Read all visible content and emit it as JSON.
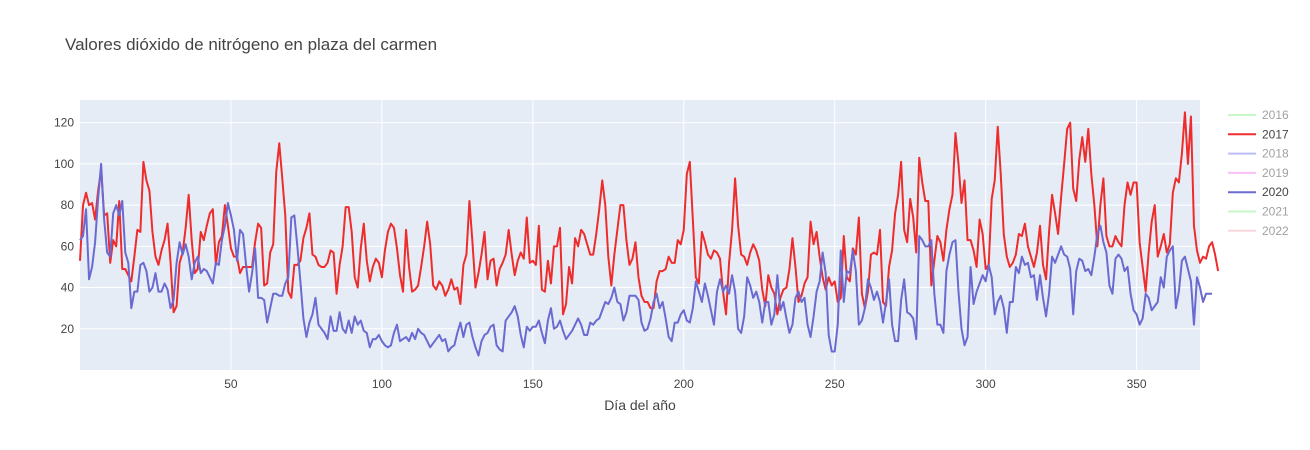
{
  "chart_data": {
    "type": "line",
    "title": "Valores dióxido de nitrógeno en plaza del carmen",
    "xlabel": "Día del año",
    "ylabel": "",
    "xlim": [
      0,
      371
    ],
    "ylim": [
      0,
      131
    ],
    "x_ticks": [
      50,
      100,
      150,
      200,
      250,
      300,
      350
    ],
    "y_ticks": [
      20,
      40,
      60,
      80,
      100,
      120
    ],
    "grid": true,
    "legend_position": "right",
    "legend": [
      {
        "name": "2016",
        "color": "#90ee90",
        "hidden": true
      },
      {
        "name": "2017",
        "color": "#ee2c2c",
        "hidden": false
      },
      {
        "name": "2018",
        "color": "#7b7bee",
        "hidden": true
      },
      {
        "name": "2019",
        "color": "#ee82ee",
        "hidden": true
      },
      {
        "name": "2020",
        "color": "#6a6ad0",
        "hidden": false
      },
      {
        "name": "2021",
        "color": "#90ee90",
        "hidden": true
      },
      {
        "name": "2022",
        "color": "#f0b0b8",
        "hidden": true
      }
    ],
    "series": [
      {
        "name": "2017",
        "color": "#ee2c2c",
        "x_start": 0,
        "x_step": 1,
        "values": [
          53,
          80,
          86,
          80,
          81,
          73,
          87,
          97,
          75,
          76,
          52,
          63,
          60,
          82,
          49,
          49,
          46,
          43,
          55,
          68,
          67,
          101,
          92,
          87,
          67,
          55,
          51,
          58,
          63,
          71,
          52,
          28,
          31,
          52,
          57,
          69,
          85,
          63,
          47,
          49,
          67,
          63,
          70,
          76,
          78,
          51,
          62,
          65,
          80,
          70,
          59,
          55,
          55,
          47,
          50,
          50,
          50,
          50,
          62,
          71,
          69,
          41,
          42,
          57,
          61,
          96,
          110,
          93,
          75,
          38,
          35,
          51,
          51,
          53,
          64,
          69,
          76,
          56,
          55,
          51,
          50,
          50,
          52,
          58,
          57,
          37,
          51,
          60,
          79,
          79,
          67,
          45,
          40,
          59,
          71,
          53,
          43,
          50,
          54,
          52,
          45,
          58,
          67,
          71,
          69,
          59,
          46,
          38,
          68,
          50,
          38,
          39,
          41,
          50,
          60,
          72,
          61,
          41,
          39,
          43,
          41,
          36,
          39,
          44,
          39,
          40,
          32,
          51,
          56,
          82,
          62,
          40,
          47,
          56,
          67,
          44,
          53,
          54,
          41,
          49,
          52,
          56,
          68,
          56,
          46,
          53,
          57,
          54,
          74,
          52,
          53,
          51,
          70,
          39,
          38,
          53,
          42,
          60,
          60,
          69,
          27,
          32,
          50,
          42,
          64,
          60,
          68,
          66,
          61,
          56,
          56,
          66,
          78,
          92,
          80,
          55,
          41,
          56,
          68,
          80,
          80,
          63,
          51,
          54,
          62,
          45,
          36,
          33,
          33,
          30,
          30,
          43,
          48,
          48,
          49,
          55,
          52,
          52,
          63,
          61,
          68,
          95,
          101,
          73,
          45,
          42,
          67,
          62,
          56,
          54,
          58,
          57,
          54,
          38,
          27,
          52,
          68,
          93,
          70,
          56,
          55,
          51,
          57,
          61,
          58,
          53,
          39,
          31,
          46,
          40,
          37,
          27,
          35,
          39,
          40,
          49,
          64,
          50,
          33,
          36,
          42,
          45,
          72,
          61,
          67,
          55,
          45,
          39,
          45,
          41,
          43,
          33,
          35,
          65,
          45,
          43,
          59,
          56,
          74,
          37,
          30,
          38,
          56,
          57,
          56,
          68,
          33,
          31,
          50,
          58,
          76,
          85,
          101,
          68,
          62,
          83,
          74,
          57,
          103,
          91,
          82,
          82,
          41,
          53,
          65,
          62,
          53,
          68,
          78,
          85,
          115,
          100,
          81,
          92,
          63,
          63,
          58,
          50,
          73,
          66,
          49,
          51,
          83,
          92,
          118,
          95,
          66,
          55,
          50,
          52,
          56,
          66,
          65,
          71,
          60,
          55,
          50,
          57,
          70,
          51,
          44,
          67,
          85,
          76,
          66,
          84,
          100,
          117,
          120,
          88,
          82,
          102,
          113,
          101,
          117,
          95,
          80,
          60,
          80,
          93,
          65,
          60,
          60,
          65,
          62,
          60,
          80,
          91,
          85,
          91,
          91,
          62,
          50,
          38,
          57,
          72,
          80,
          55,
          60,
          66,
          57,
          61,
          86,
          93,
          91,
          105,
          125,
          100,
          123,
          70,
          58,
          52,
          55,
          54,
          60,
          62,
          56,
          48
        ]
      },
      {
        "name": "2020",
        "color": "#6a6ad0",
        "x_start": 0,
        "x_step": 1,
        "values": [
          63,
          65,
          78,
          44,
          50,
          62,
          83,
          100,
          73,
          57,
          55,
          76,
          80,
          75,
          82,
          57,
          52,
          30,
          38,
          38,
          51,
          52,
          48,
          38,
          40,
          47,
          38,
          38,
          42,
          39,
          30,
          34,
          52,
          62,
          56,
          61,
          55,
          44,
          52,
          55,
          47,
          49,
          48,
          45,
          42,
          52,
          51,
          63,
          70,
          81,
          75,
          68,
          53,
          68,
          66,
          51,
          38,
          47,
          59,
          35,
          35,
          34,
          23,
          30,
          37,
          37,
          36,
          36,
          42,
          45,
          74,
          75,
          60,
          43,
          25,
          16,
          23,
          27,
          35,
          22,
          20,
          18,
          15,
          26,
          19,
          19,
          28,
          20,
          18,
          24,
          18,
          26,
          22,
          24,
          19,
          18,
          11,
          15,
          15,
          17,
          14,
          12,
          11,
          12,
          18,
          22,
          14,
          15,
          16,
          14,
          18,
          15,
          20,
          18,
          17,
          14,
          11,
          13,
          15,
          17,
          14,
          15,
          9,
          11,
          12,
          18,
          23,
          16,
          22,
          23,
          16,
          11,
          7,
          14,
          17,
          18,
          21,
          22,
          12,
          10,
          9,
          24,
          26,
          28,
          31,
          26,
          17,
          11,
          21,
          19,
          21,
          21,
          24,
          18,
          13,
          24,
          30,
          20,
          21,
          24,
          19,
          15,
          17,
          19,
          22,
          25,
          22,
          17,
          17,
          23,
          22,
          24,
          25,
          29,
          33,
          32,
          35,
          40,
          33,
          32,
          24,
          28,
          36,
          36,
          36,
          34,
          23,
          19,
          20,
          25,
          33,
          37,
          30,
          33,
          25,
          16,
          14,
          23,
          23,
          27,
          29,
          24,
          23,
          30,
          43,
          38,
          33,
          42,
          36,
          29,
          22,
          38,
          44,
          38,
          41,
          37,
          46,
          38,
          20,
          18,
          26,
          45,
          41,
          35,
          38,
          33,
          23,
          33,
          33,
          22,
          27,
          46,
          29,
          33,
          25,
          18,
          22,
          35,
          38,
          33,
          35,
          22,
          16,
          26,
          38,
          43,
          57,
          47,
          17,
          9,
          9,
          22,
          58,
          33,
          48,
          47,
          58,
          48,
          22,
          24,
          30,
          44,
          40,
          34,
          38,
          33,
          23,
          33,
          44,
          22,
          14,
          14,
          34,
          44,
          28,
          27,
          25,
          15,
          65,
          63,
          60,
          60,
          63,
          37,
          22,
          22,
          18,
          48,
          56,
          62,
          63,
          38,
          20,
          12,
          16,
          50,
          32,
          38,
          42,
          46,
          43,
          51,
          45,
          27,
          33,
          36,
          30,
          18,
          33,
          33,
          50,
          47,
          55,
          51,
          52,
          45,
          46,
          34,
          46,
          35,
          26,
          37,
          55,
          52,
          56,
          60,
          56,
          55,
          49,
          27,
          48,
          54,
          53,
          48,
          49,
          46,
          55,
          66,
          70,
          62,
          57,
          41,
          37,
          54,
          56,
          54,
          48,
          50,
          37,
          29,
          27,
          22,
          25,
          37,
          35,
          29,
          31,
          33,
          45,
          40,
          55,
          58,
          60,
          30,
          38,
          53,
          55,
          49,
          43,
          22,
          45,
          40,
          33,
          37,
          37,
          37
        ]
      }
    ]
  }
}
